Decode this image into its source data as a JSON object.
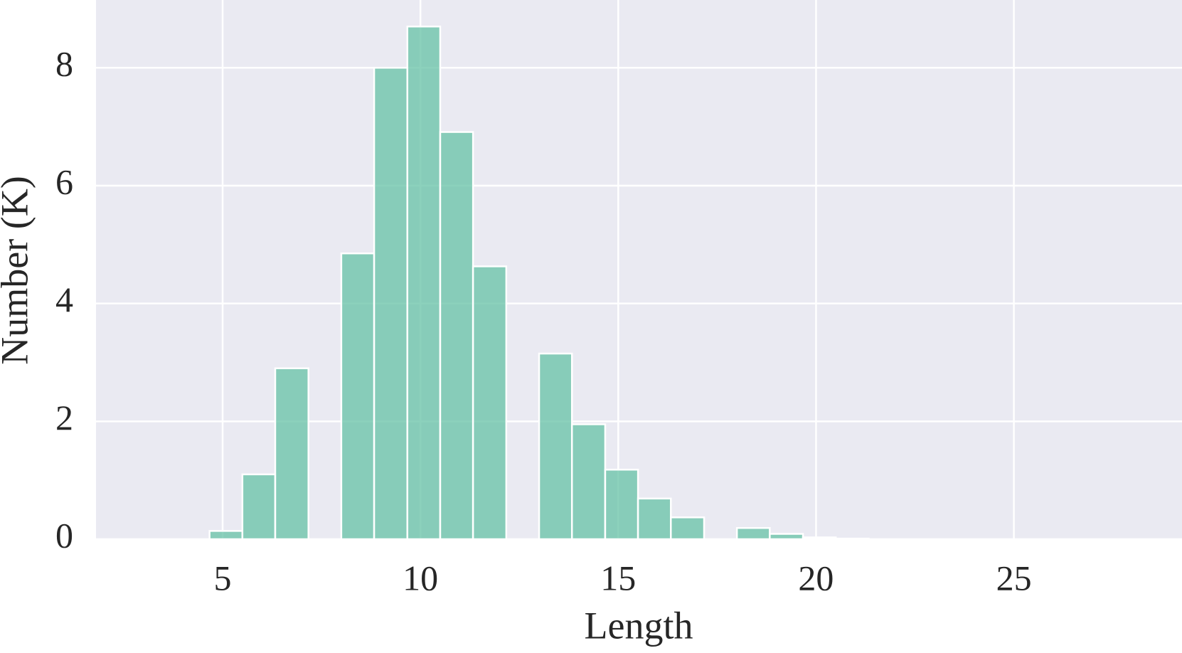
{
  "chart_data": {
    "type": "histogram",
    "x_label": "Length",
    "y_label": "Number (K)",
    "bins": [
      4.67,
      5.5,
      6.33,
      7.17,
      8.0,
      8.83,
      9.67,
      10.5,
      11.33,
      12.17,
      13.0,
      13.83,
      14.67,
      15.5,
      16.33,
      17.17,
      18.0,
      18.83,
      19.67,
      20.5,
      21.33
    ],
    "values": [
      0.14,
      1.1,
      2.9,
      0,
      4.85,
      8.0,
      8.7,
      6.91,
      4.63,
      0,
      3.15,
      1.95,
      1.18,
      0.69,
      0.37,
      0,
      0.19,
      0.09,
      0.03,
      0.01
    ],
    "color": "#66c2a5",
    "background": "#eaeaf2",
    "grid": true,
    "xlim": [
      1.8,
      29.25
    ],
    "ylim": [
      0,
      9.15
    ],
    "xticks": [
      5,
      10,
      15,
      20,
      25
    ],
    "yticks": [
      0,
      2,
      4,
      6,
      8
    ]
  }
}
